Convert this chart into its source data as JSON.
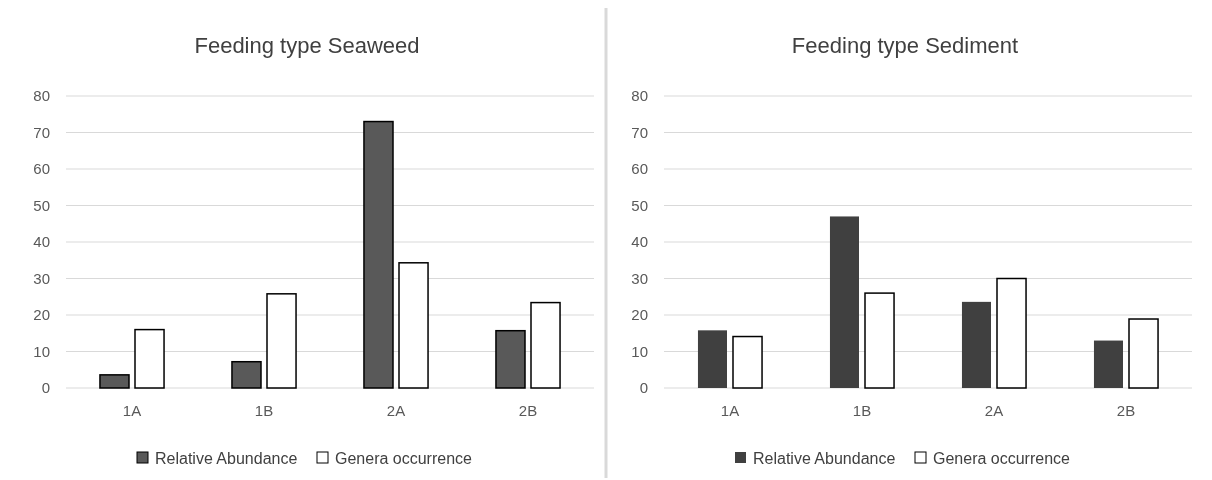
{
  "chart_data": [
    {
      "type": "bar",
      "title": "Feeding type Seaweed",
      "categories": [
        "1A",
        "1B",
        "2A",
        "2B"
      ],
      "series": [
        {
          "name": "Relative Abundance",
          "color": "#595959",
          "values": [
            3.6,
            7.2,
            73,
            15.7
          ]
        },
        {
          "name": "Genera occurrence",
          "color": "#ffffff",
          "values": [
            16,
            25.8,
            34.3,
            23.4
          ]
        }
      ],
      "ylim": [
        0,
        80
      ],
      "yticks": [
        0,
        10,
        20,
        30,
        40,
        50,
        60,
        70,
        80
      ],
      "grid": "y",
      "legend": "bottom"
    },
    {
      "type": "bar",
      "title": "Feeding type Sediment",
      "categories": [
        "1A",
        "1B",
        "2A",
        "2B"
      ],
      "series": [
        {
          "name": "Relative Abundance",
          "color": "#404040",
          "values": [
            15.8,
            47,
            23.6,
            13
          ]
        },
        {
          "name": "Genera occurrence",
          "color": "#ffffff",
          "values": [
            14.1,
            26,
            30,
            18.9
          ]
        }
      ],
      "ylim": [
        0,
        80
      ],
      "yticks": [
        0,
        10,
        20,
        30,
        40,
        50,
        60,
        70,
        80
      ],
      "grid": "y",
      "legend": "bottom"
    }
  ]
}
